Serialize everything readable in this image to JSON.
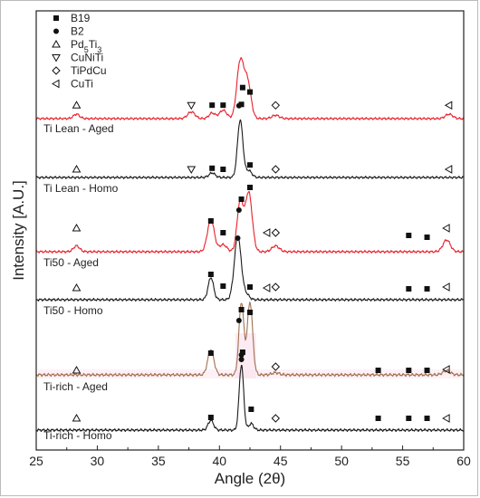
{
  "chart_data": {
    "type": "line",
    "xlabel": "Angle (2θ)",
    "ylabel": "Intensity [A.U.]",
    "xlim": [
      25,
      60
    ],
    "xticks": [
      25,
      30,
      35,
      40,
      45,
      50,
      55,
      60
    ],
    "y_ticks_shown": false,
    "legend": {
      "placement": "top-left",
      "entries": [
        {
          "symbol": "square",
          "label": "B19"
        },
        {
          "symbol": "circle",
          "label": "B2"
        },
        {
          "symbol": "triangle-up",
          "label": "Pd5Ti3",
          "label_main": "Pd",
          "label_sub1": "5",
          "label_mid": "Ti",
          "label_sub2": "3"
        },
        {
          "symbol": "triangle-down",
          "label": "CuNiTi"
        },
        {
          "symbol": "diamond",
          "label": "TiPdCu"
        },
        {
          "symbol": "triangle-left",
          "label": "CuTi"
        }
      ]
    },
    "colors": {
      "aged": "#e8202a",
      "homo": "#1a1a1a",
      "tirich_aged": "#a07050"
    },
    "series": [
      {
        "name": "Ti Lean - Aged",
        "color": "#e8202a",
        "baseline": 0.92,
        "peaks": [
          [
            28.3,
            0.08,
            0.25
          ],
          [
            37.7,
            0.12,
            0.3
          ],
          [
            39.4,
            0.1,
            0.25
          ],
          [
            40.3,
            0.15,
            0.3
          ],
          [
            41.7,
            1.0,
            0.28
          ],
          [
            42.3,
            0.65,
            0.28
          ],
          [
            44.6,
            0.06,
            0.3
          ],
          [
            58.8,
            0.08,
            0.3
          ]
        ],
        "markers": [
          {
            "symbol": "triangle-up",
            "x": 28.3,
            "y": 1.05
          },
          {
            "symbol": "triangle-down",
            "x": 37.7,
            "y": 1.05
          },
          {
            "symbol": "square",
            "x": 39.4,
            "y": 1.06
          },
          {
            "symbol": "square",
            "x": 40.3,
            "y": 1.06
          },
          {
            "symbol": "circle",
            "x": 41.6,
            "y": 1.02
          },
          {
            "symbol": "square",
            "x": 41.8,
            "y": 1.12
          },
          {
            "symbol": "square",
            "x": 41.9,
            "y": 2.45
          },
          {
            "symbol": "square",
            "x": 42.5,
            "y": 2.1
          },
          {
            "symbol": "diamond",
            "x": 44.6,
            "y": 1.05
          },
          {
            "symbol": "triangle-left",
            "x": 58.8,
            "y": 1.05
          }
        ]
      },
      {
        "name": "Ti Lean - Homo",
        "color": "#1a1a1a",
        "baseline": 0.0,
        "peaks": [
          [
            39.4,
            0.08,
            0.25
          ],
          [
            41.7,
            1.0,
            0.22
          ],
          [
            42.4,
            0.12,
            0.25
          ]
        ],
        "markers": [
          {
            "symbol": "triangle-up",
            "x": 28.3,
            "y": 0.15
          },
          {
            "symbol": "triangle-down",
            "x": 37.7,
            "y": 0.15
          },
          {
            "symbol": "square",
            "x": 39.4,
            "y": 0.17
          },
          {
            "symbol": "square",
            "x": 40.3,
            "y": 0.15
          },
          {
            "symbol": "square",
            "x": 42.5,
            "y": 0.23
          },
          {
            "symbol": "diamond",
            "x": 44.6,
            "y": 0.15
          },
          {
            "symbol": "triangle-left",
            "x": 58.8,
            "y": 0.15
          }
        ]
      }
    ],
    "trace_labels": [
      "Ti Lean - Aged",
      "Ti Lean - Homo",
      "Ti50 - Aged",
      "Ti50 - Homo",
      "Ti-rich - Aged",
      "Ti-rich - Homo"
    ]
  }
}
